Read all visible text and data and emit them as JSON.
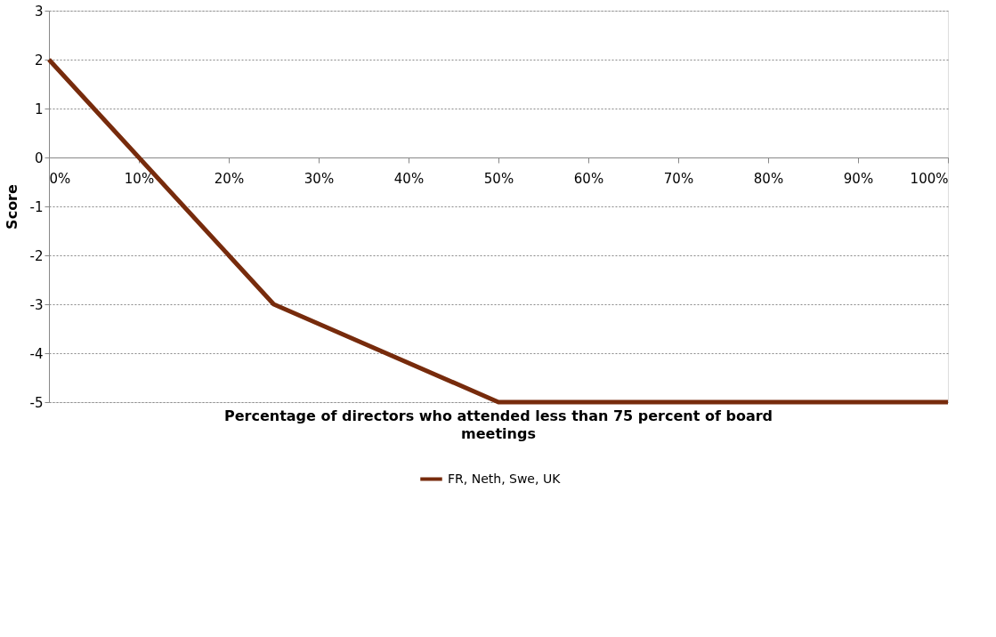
{
  "chart_data": {
    "type": "line",
    "xlabel": "Percentage of directors who attended less than 75 percent of board meetings",
    "ylabel": "Score",
    "x": [
      0,
      25,
      50,
      100
    ],
    "series": [
      {
        "name": "FR, Neth, Swe, UK",
        "color": "#772b0c",
        "values": [
          2,
          -3,
          -5,
          -5
        ]
      }
    ],
    "xlim": [
      0,
      100
    ],
    "xticks": [
      {
        "value": 0,
        "label": "0%"
      },
      {
        "value": 10,
        "label": "10%"
      },
      {
        "value": 20,
        "label": "20%"
      },
      {
        "value": 30,
        "label": "30%"
      },
      {
        "value": 40,
        "label": "40%"
      },
      {
        "value": 50,
        "label": "50%"
      },
      {
        "value": 60,
        "label": "60%"
      },
      {
        "value": 70,
        "label": "70%"
      },
      {
        "value": 80,
        "label": "80%"
      },
      {
        "value": 90,
        "label": "90%"
      },
      {
        "value": 100,
        "label": "100%"
      }
    ],
    "ylim": [
      -5,
      3
    ],
    "yticks": [
      -5,
      -4,
      -3,
      -2,
      -1,
      0,
      1,
      2,
      3
    ],
    "grid": "y",
    "legend": "bottom",
    "marker": "none",
    "line_style": "solid"
  }
}
